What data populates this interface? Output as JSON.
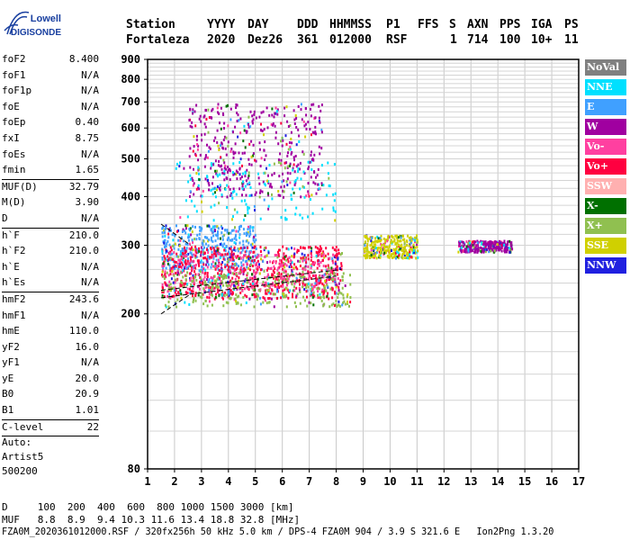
{
  "logo": {
    "line1": "Lowell",
    "line2": "DIGISONDE"
  },
  "header": {
    "labels": [
      "Station",
      "YYYY",
      "DAY",
      "DDD",
      "HHMMSS",
      "P1",
      "FFS",
      "S",
      "AXN",
      "PPS",
      "IGA",
      "PS"
    ],
    "values": [
      "Fortaleza",
      "2020",
      "Dez26",
      "361",
      "012000",
      "RSF",
      "",
      "1",
      "714",
      "100",
      "10+",
      "11"
    ]
  },
  "params": [
    [
      [
        "foF2",
        "8.400"
      ],
      [
        "foF1",
        "N/A"
      ],
      [
        "foF1p",
        "N/A"
      ],
      [
        "foE",
        "N/A"
      ],
      [
        "foEp",
        "0.40"
      ],
      [
        "fxI",
        "8.75"
      ],
      [
        "foEs",
        "N/A"
      ],
      [
        "fmin",
        "1.65"
      ]
    ],
    [
      [
        "MUF(D)",
        "32.79"
      ],
      [
        "M(D)",
        "3.90"
      ],
      [
        "D",
        "N/A"
      ]
    ],
    [
      [
        "h`F",
        "210.0"
      ],
      [
        "h`F2",
        "210.0"
      ],
      [
        "h`E",
        "N/A"
      ],
      [
        "h`Es",
        "N/A"
      ]
    ],
    [
      [
        "hmF2",
        "243.6"
      ],
      [
        "hmF1",
        "N/A"
      ],
      [
        "hmE",
        "110.0"
      ],
      [
        "yF2",
        "16.0"
      ],
      [
        "yF1",
        "N/A"
      ],
      [
        "yE",
        "20.0"
      ],
      [
        "B0",
        "20.9"
      ],
      [
        "B1",
        "1.01"
      ]
    ],
    [
      [
        "C-level",
        "22"
      ]
    ]
  ],
  "auto": [
    "Auto:",
    "Artist5",
    "500200"
  ],
  "legend": [
    {
      "label": "NoVal",
      "color": "#808080"
    },
    {
      "label": "NNE",
      "color": "#00e0ff"
    },
    {
      "label": "E",
      "color": "#40a0ff"
    },
    {
      "label": "W",
      "color": "#a000a0"
    },
    {
      "label": "Vo-",
      "color": "#ff40a0"
    },
    {
      "label": "Vo+",
      "color": "#ff0040"
    },
    {
      "label": "SSW",
      "color": "#ffb0b0"
    },
    {
      "label": "X-",
      "color": "#007000"
    },
    {
      "label": "X+",
      "color": "#90c050"
    },
    {
      "label": "SSE",
      "color": "#d0d000"
    },
    {
      "label": "NNW",
      "color": "#2020e0"
    }
  ],
  "bottom": {
    "d_line": "D     100  200  400  600  800 1000 1500 3000 [km]",
    "muf_line": "MUF   8.8  8.9  9.4 10.3 11.6 13.4 18.8 32.8 [MHz]",
    "file_line": "FZA0M_2020361012000.RSF / 320fx256h 50 kHz 5.0 km / DPS-4 FZA0M 904 / 3.9 S 321.6 E   Ion2Png 1.3.20"
  },
  "chart_data": {
    "type": "scatter",
    "xlabel": "",
    "ylabel": "",
    "xlim": [
      1,
      17
    ],
    "ylim": [
      80,
      900
    ],
    "y_scale": "log",
    "x_ticks": [
      1,
      2,
      3,
      4,
      5,
      6,
      7,
      8,
      9,
      10,
      11,
      12,
      13,
      14,
      15,
      16,
      17
    ],
    "y_ticks": [
      80,
      200,
      300,
      400,
      500,
      600,
      700,
      800,
      900
    ],
    "grid": true,
    "legend_position": "right",
    "clusters": [
      {
        "name": "E",
        "x": [
          1.5,
          5.0
        ],
        "y": [
          260,
          340
        ]
      },
      {
        "name": "Vo+",
        "x": [
          1.5,
          8.2
        ],
        "y": [
          220,
          300
        ]
      },
      {
        "name": "Vo-",
        "x": [
          1.5,
          8.0
        ],
        "y": [
          230,
          290
        ]
      },
      {
        "name": "X+",
        "x": [
          1.5,
          8.5
        ],
        "y": [
          210,
          260
        ]
      },
      {
        "name": "W",
        "x": [
          2.5,
          7.5
        ],
        "y": [
          400,
          700
        ]
      },
      {
        "name": "NNE",
        "x": [
          2.0,
          8.0
        ],
        "y": [
          350,
          500
        ]
      },
      {
        "name": "SSE",
        "x": [
          9.0,
          11.0
        ],
        "y": [
          280,
          320
        ]
      },
      {
        "name": "W",
        "x": [
          12.5,
          14.5
        ],
        "y": [
          290,
          310
        ]
      }
    ],
    "fitted_traces": [
      {
        "name": "trace-1",
        "x": [
          1.5,
          8.2
        ],
        "y": [
          230,
          260
        ]
      },
      {
        "name": "trace-2",
        "x": [
          1.5,
          8.0
        ],
        "y": [
          220,
          250
        ]
      },
      {
        "name": "trace-3",
        "x": [
          1.5,
          2.6
        ],
        "y": [
          340,
          300
        ]
      },
      {
        "name": "trace-4",
        "x": [
          1.5,
          2.6
        ],
        "y": [
          200,
          225
        ]
      }
    ]
  }
}
